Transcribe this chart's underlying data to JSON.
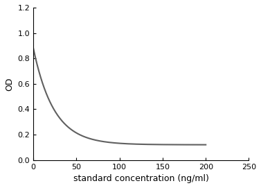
{
  "title": "",
  "xlabel": "standard concentration (ng/ml)",
  "ylabel": "OD",
  "xlim": [
    0,
    250
  ],
  "ylim": [
    0,
    1.2
  ],
  "xticks": [
    0,
    50,
    100,
    150,
    200,
    250
  ],
  "yticks": [
    0,
    0.2,
    0.4,
    0.6,
    0.8,
    1.0,
    1.2
  ],
  "curve_color": "#606060",
  "curve_linewidth": 1.5,
  "background_color": "#ffffff",
  "plot_bg_color": "#ffffff",
  "curve_params": {
    "a": 0.88,
    "b": 0.12,
    "k": 0.042
  }
}
